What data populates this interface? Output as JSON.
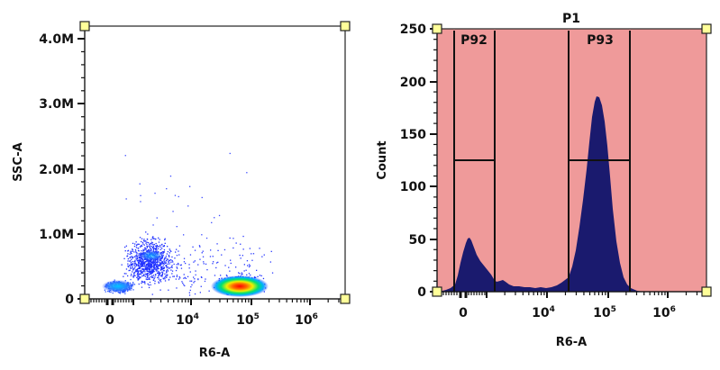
{
  "chart_data": [
    {
      "type": "scatter",
      "title": "",
      "xlabel": "R6-A",
      "ylabel": "SSC-A",
      "x_scale": "biexponential",
      "x_tick_labels": [
        "0",
        "10^4",
        "10^5",
        "10^6"
      ],
      "y_tick_labels": [
        "0",
        "1.0M",
        "2.0M",
        "3.0M",
        "4.0M"
      ],
      "ylim": [
        0,
        4200000
      ],
      "density_colormap": [
        "#1a1aff",
        "#00b0ff",
        "#00e070",
        "#f0f000",
        "#ff8000",
        "#ff0000"
      ],
      "populations": [
        {
          "name": "negative-low",
          "x_center": "~0",
          "y_center": 200000,
          "density": "medium"
        },
        {
          "name": "negative-spread",
          "x_center": "~2x10^3",
          "y_center": 650000,
          "density": "medium"
        },
        {
          "name": "positive",
          "x_center": "~6x10^4",
          "y_center": 200000,
          "density": "high"
        }
      ]
    },
    {
      "type": "area",
      "title": "P1",
      "xlabel": "R6-A",
      "ylabel": "Count",
      "x_scale": "biexponential",
      "x_tick_labels": [
        "0",
        "10^4",
        "10^5",
        "10^6"
      ],
      "y_tick_labels": [
        "0",
        "50",
        "100",
        "150",
        "200",
        "250"
      ],
      "ylim": [
        0,
        250
      ],
      "background": "#ef9a9a",
      "fill": "#1a1a6e",
      "peaks": [
        {
          "x": "~0",
          "count": 55
        },
        {
          "x": "~6x10^4",
          "count": 185
        }
      ],
      "gates": [
        {
          "name": "P92",
          "x_start": "~-100",
          "x_end": "~1x10^3",
          "bar_y": 125
        },
        {
          "name": "P93",
          "x_start": "~2x10^4",
          "x_end": "~2.5x10^5",
          "bar_y": 125
        }
      ]
    }
  ],
  "left_plot": {
    "y_label": "SSC-A",
    "x_label": "R6-A",
    "y_ticks": [
      "4.0M",
      "3.0M",
      "2.0M",
      "1.0M",
      "0"
    ],
    "x_ticks": [
      "0",
      "10",
      "10",
      "10"
    ],
    "x_exps": [
      "",
      "4",
      "5",
      "6"
    ]
  },
  "right_plot": {
    "title": "P1",
    "y_label": "Count",
    "x_label": "R6-A",
    "y_ticks": [
      "250",
      "200",
      "150",
      "100",
      "50",
      "0"
    ],
    "x_ticks": [
      "0",
      "10",
      "10",
      "10"
    ],
    "x_exps": [
      "",
      "4",
      "5",
      "6"
    ],
    "gate_labels": [
      "P92",
      "P93"
    ]
  }
}
